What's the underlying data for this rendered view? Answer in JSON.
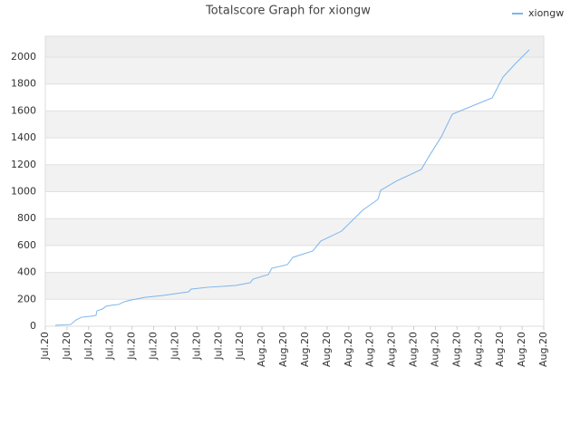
{
  "chart_data": {
    "type": "line",
    "title": "Totalscore Graph for xiongw",
    "x": [
      0.46,
      1.17,
      1.42,
      1.67,
      2.09,
      2.34,
      2.38,
      2.63,
      2.8,
      3.01,
      3.39,
      3.64,
      3.97,
      4.6,
      5.44,
      6.61,
      6.73,
      7.53,
      8.78,
      9.45,
      9.58,
      10.29,
      10.45,
      11.17,
      11.42,
      12.34,
      12.71,
      13.67,
      14.64,
      15.35,
      15.47,
      16.18,
      17.35,
      17.69,
      18.27,
      18.78,
      20.62,
      21.12,
      21.7,
      22.33
    ],
    "series": [
      {
        "name": "xiongw",
        "color": "#7cb5ec",
        "values": [
          7,
          13,
          47,
          67,
          74,
          81,
          114,
          128,
          148,
          155,
          162,
          182,
          195,
          215,
          229,
          256,
          276,
          290,
          303,
          323,
          350,
          384,
          431,
          458,
          512,
          559,
          633,
          707,
          862,
          943,
          1010,
          1077,
          1165,
          1259,
          1407,
          1576,
          1697,
          1852,
          1953,
          2054
        ]
      }
    ],
    "xlim": [
      0,
      23
    ],
    "xticks": [
      {
        "value": 0,
        "label": "Jul.20"
      },
      {
        "value": 1,
        "label": "Jul.20"
      },
      {
        "value": 2,
        "label": "Jul.20"
      },
      {
        "value": 3,
        "label": "Jul.20"
      },
      {
        "value": 4,
        "label": "Jul.20"
      },
      {
        "value": 5,
        "label": "Jul.20"
      },
      {
        "value": 6,
        "label": "Jul.20"
      },
      {
        "value": 7,
        "label": "Jul.20"
      },
      {
        "value": 8,
        "label": "Jul.20"
      },
      {
        "value": 9,
        "label": "Jul.20"
      },
      {
        "value": 10,
        "label": "Aug.20"
      },
      {
        "value": 11,
        "label": "Aug.20"
      },
      {
        "value": 12,
        "label": "Aug.20"
      },
      {
        "value": 13,
        "label": "Aug.20"
      },
      {
        "value": 14,
        "label": "Aug.20"
      },
      {
        "value": 15,
        "label": "Aug.20"
      },
      {
        "value": 16,
        "label": "Aug.20"
      },
      {
        "value": 17,
        "label": "Aug.20"
      },
      {
        "value": 18,
        "label": "Aug.20"
      },
      {
        "value": 19,
        "label": "Aug.20"
      },
      {
        "value": 20,
        "label": "Aug.20"
      },
      {
        "value": 21,
        "label": "Aug.20"
      },
      {
        "value": 22,
        "label": "Aug.20"
      },
      {
        "value": 23,
        "label": "Aug.20"
      }
    ],
    "ylim": [
      0,
      2155
    ],
    "yticks": [
      0,
      200,
      400,
      600,
      800,
      1000,
      1200,
      1400,
      1600,
      1800,
      2000
    ],
    "grid": true,
    "legend": "top-right"
  }
}
